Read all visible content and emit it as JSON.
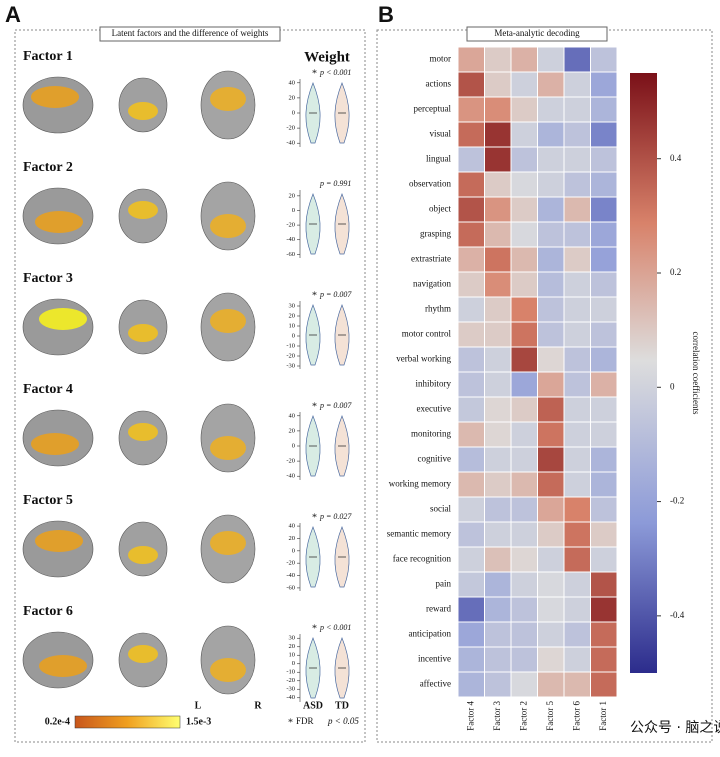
{
  "panel_a": {
    "label": "A",
    "title": "Latent factors and the difference of weights",
    "weight_heading": "Weight",
    "factors": [
      {
        "name": "Factor 1",
        "star": "*",
        "p_text": "p < 0.001",
        "ylim": [
          -45,
          45
        ],
        "yticks": [
          40,
          20,
          0,
          -20,
          -40
        ]
      },
      {
        "name": "Factor 2",
        "p_text": "p = 0.991",
        "ylim": [
          -65,
          28
        ],
        "yticks": [
          20,
          0,
          -20,
          -40,
          -60
        ]
      },
      {
        "name": "Factor 3",
        "star": "*",
        "p_text": "p = 0.007",
        "ylim": [
          -33,
          35
        ],
        "yticks": [
          30,
          20,
          10,
          0,
          -10,
          -20,
          -30
        ]
      },
      {
        "name": "Factor 4",
        "star": "*",
        "p_text": "p = 0.007",
        "ylim": [
          -45,
          45
        ],
        "yticks": [
          40,
          20,
          0,
          -20,
          -40
        ]
      },
      {
        "name": "Factor 5",
        "star": "*",
        "p_text": "p = 0.027",
        "ylim": [
          -65,
          45
        ],
        "yticks": [
          40,
          20,
          0,
          -20,
          -40,
          -60
        ]
      },
      {
        "name": "Factor 6",
        "star": "*",
        "p_text": "p < 0.001",
        "ylim": [
          -45,
          35
        ],
        "yticks": [
          30,
          20,
          10,
          0,
          -10,
          -20,
          -30,
          -40
        ]
      }
    ],
    "groups": [
      "ASD",
      "TD"
    ],
    "hemispheres": [
      "L",
      "R"
    ],
    "colorbar_min": "0.2e-4",
    "colorbar_max": "1.5e-3",
    "fdr_star": "*",
    "fdr_text": "FDR",
    "fdr_p": "p < 0.05"
  },
  "chart_data": {
    "type": "heatmap",
    "label": "B",
    "title": "Meta-analytic decoding",
    "rows": [
      "motor",
      "actions",
      "perceptual",
      "visual",
      "lingual",
      "observation",
      "object",
      "grasping",
      "extrastriate",
      "navigation",
      "rhythm",
      "motor control",
      "verbal working",
      "inhibitory",
      "executive",
      "monitoring",
      "cognitive",
      "working memory",
      "social",
      "semantic memory",
      "face recognition",
      "pain",
      "reward",
      "anticipation",
      "incentive",
      "affective"
    ],
    "columns": [
      "Factor 4",
      "Factor 3",
      "Factor 2",
      "Factor 5",
      "Factor 6",
      "Factor 1"
    ],
    "values": [
      [
        0.15,
        0.05,
        0.12,
        -0.05,
        -0.35,
        -0.1
      ],
      [
        0.35,
        0.05,
        -0.05,
        0.12,
        -0.05,
        -0.2
      ],
      [
        0.2,
        0.22,
        0.05,
        -0.05,
        -0.05,
        -0.15
      ],
      [
        0.3,
        0.42,
        -0.05,
        -0.15,
        -0.1,
        -0.3
      ],
      [
        -0.1,
        0.42,
        -0.1,
        -0.05,
        -0.05,
        -0.1
      ],
      [
        0.3,
        0.05,
        -0.02,
        -0.05,
        -0.1,
        -0.15
      ],
      [
        0.35,
        0.2,
        0.05,
        -0.15,
        0.1,
        -0.3
      ],
      [
        0.3,
        0.1,
        -0.02,
        -0.1,
        -0.1,
        -0.2
      ],
      [
        0.12,
        0.28,
        0.1,
        -0.15,
        0.05,
        -0.22
      ],
      [
        0.05,
        0.22,
        0.05,
        -0.12,
        -0.05,
        -0.1
      ],
      [
        -0.05,
        0.05,
        0.25,
        -0.1,
        -0.05,
        -0.05
      ],
      [
        0.05,
        0.05,
        0.28,
        -0.1,
        -0.05,
        -0.1
      ],
      [
        -0.1,
        -0.05,
        0.38,
        0.02,
        -0.1,
        -0.15
      ],
      [
        -0.1,
        -0.05,
        -0.2,
        0.15,
        -0.1,
        0.12
      ],
      [
        -0.08,
        0.02,
        0.05,
        0.32,
        -0.05,
        -0.05
      ],
      [
        0.1,
        0.02,
        -0.05,
        0.28,
        -0.05,
        -0.05
      ],
      [
        -0.12,
        -0.05,
        -0.05,
        0.38,
        -0.05,
        -0.15
      ],
      [
        0.1,
        0.05,
        0.1,
        0.3,
        -0.05,
        -0.15
      ],
      [
        -0.05,
        -0.1,
        -0.1,
        0.15,
        0.25,
        -0.1
      ],
      [
        -0.1,
        -0.05,
        -0.05,
        0.05,
        0.28,
        0.05
      ],
      [
        -0.05,
        0.08,
        0.02,
        -0.05,
        0.3,
        -0.05
      ],
      [
        -0.08,
        -0.15,
        -0.05,
        -0.02,
        -0.05,
        0.35
      ],
      [
        -0.35,
        -0.15,
        -0.1,
        -0.02,
        -0.05,
        0.42
      ],
      [
        -0.2,
        -0.1,
        -0.1,
        -0.05,
        -0.1,
        0.3
      ],
      [
        -0.15,
        -0.1,
        -0.1,
        0.02,
        -0.05,
        0.3
      ],
      [
        -0.15,
        -0.1,
        -0.02,
        0.1,
        0.1,
        0.3
      ]
    ],
    "colorbar_label": "correlation coefficients",
    "clim": [
      -0.5,
      0.55
    ],
    "cticks": [
      0.4,
      0.2,
      0,
      -0.2,
      -0.4
    ]
  },
  "watermark": "公众号 · 脑之说"
}
